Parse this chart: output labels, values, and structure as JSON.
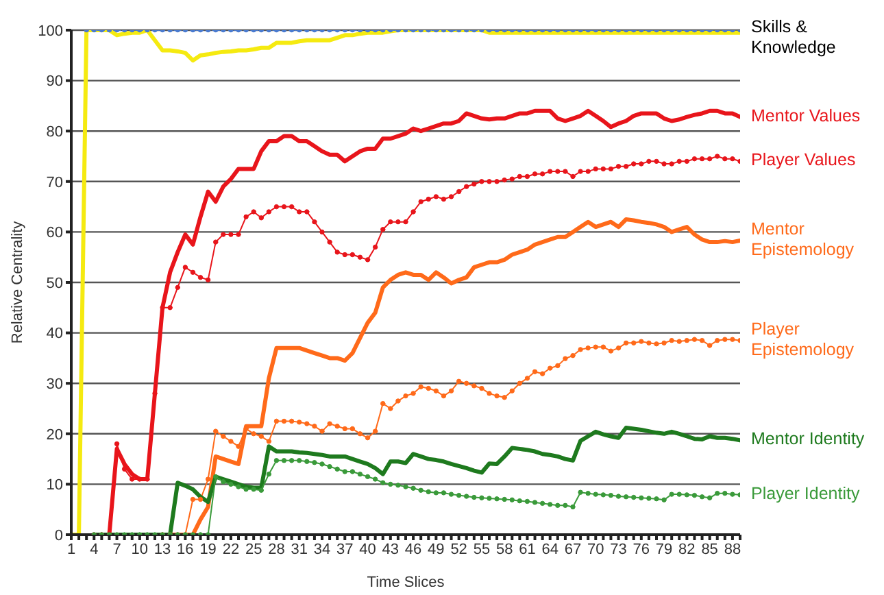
{
  "chart_data": {
    "type": "line",
    "xlabel": "Time Slices",
    "ylabel": "Relative Centrality",
    "grid": "y",
    "legend": "right",
    "annotations": [
      {
        "text": "Skills & Knowledge",
        "x": 89,
        "y": 100
      }
    ],
    "x": [
      1,
      2,
      3,
      4,
      5,
      6,
      7,
      8,
      9,
      10,
      11,
      12,
      13,
      14,
      15,
      16,
      17,
      18,
      19,
      20,
      21,
      22,
      23,
      24,
      25,
      26,
      27,
      28,
      29,
      30,
      31,
      32,
      33,
      34,
      35,
      36,
      37,
      38,
      39,
      40,
      41,
      42,
      43,
      44,
      45,
      46,
      47,
      48,
      49,
      50,
      51,
      52,
      53,
      54,
      55,
      56,
      57,
      58,
      59,
      60,
      61,
      62,
      63,
      64,
      65,
      66,
      67,
      68,
      69,
      70,
      71,
      72,
      73,
      74,
      75,
      76,
      77,
      78,
      79,
      80,
      81,
      82,
      83,
      84,
      85,
      86,
      87,
      88,
      89
    ],
    "xlim": [
      1,
      89
    ],
    "xticks": [
      1,
      {
        "value": 2,
        "label": null
      },
      {
        "value": 3,
        "label": null
      },
      4,
      {
        "value": 5,
        "label": null
      },
      {
        "value": 6,
        "label": null
      },
      7,
      {
        "value": 8,
        "label": null
      },
      {
        "value": 9,
        "label": null
      },
      10,
      {
        "value": 11,
        "label": null
      },
      {
        "value": 12,
        "label": null
      },
      13,
      {
        "value": 14,
        "label": null
      },
      {
        "value": 15,
        "label": null
      },
      16,
      {
        "value": 17,
        "label": null
      },
      {
        "value": 18,
        "label": null
      },
      19,
      {
        "value": 20,
        "label": null
      },
      {
        "value": 21,
        "label": null
      },
      22,
      {
        "value": 23,
        "label": null
      },
      {
        "value": 24,
        "label": null
      },
      25,
      {
        "value": 26,
        "label": null
      },
      {
        "value": 27,
        "label": null
      },
      28,
      {
        "value": 29,
        "label": null
      },
      {
        "value": 30,
        "label": null
      },
      31,
      {
        "value": 32,
        "label": null
      },
      {
        "value": 33,
        "label": null
      },
      34,
      {
        "value": 35,
        "label": null
      },
      {
        "value": 36,
        "label": null
      },
      37,
      {
        "value": 38,
        "label": null
      },
      {
        "value": 39,
        "label": null
      },
      40,
      {
        "value": 41,
        "label": null
      },
      {
        "value": 42,
        "label": null
      },
      43,
      {
        "value": 44,
        "label": null
      },
      {
        "value": 45,
        "label": null
      },
      46,
      {
        "value": 47,
        "label": null
      },
      {
        "value": 48,
        "label": null
      },
      49,
      {
        "value": 50,
        "label": null
      },
      {
        "value": 51,
        "label": null
      },
      52,
      {
        "value": 53,
        "label": null
      },
      {
        "value": 54,
        "label": null
      },
      55,
      {
        "value": 56,
        "label": null
      },
      {
        "value": 57,
        "label": null
      },
      58,
      {
        "value": 59,
        "label": null
      },
      {
        "value": 60,
        "label": null
      },
      61,
      {
        "value": 62,
        "label": null
      },
      {
        "value": 63,
        "label": null
      },
      64,
      {
        "value": 65,
        "label": null
      },
      {
        "value": 66,
        "label": null
      },
      67,
      {
        "value": 68,
        "label": null
      },
      {
        "value": 69,
        "label": null
      },
      70,
      {
        "value": 71,
        "label": null
      },
      {
        "value": 72,
        "label": null
      },
      73,
      {
        "value": 74,
        "label": null
      },
      {
        "value": 75,
        "label": null
      },
      76,
      {
        "value": 77,
        "label": null
      },
      {
        "value": 78,
        "label": null
      },
      79,
      {
        "value": 80,
        "label": null
      },
      {
        "value": 81,
        "label": null
      },
      82,
      {
        "value": 83,
        "label": null
      },
      {
        "value": 84,
        "label": null
      },
      85,
      {
        "value": 86,
        "label": null
      },
      {
        "value": 87,
        "label": null
      },
      88,
      {
        "value": 89,
        "label": null
      }
    ],
    "ylim": [
      0,
      100
    ],
    "yticks": [
      0,
      10,
      20,
      30,
      40,
      50,
      60,
      70,
      80,
      90,
      100
    ],
    "series": [
      {
        "color": "#4a7bd0",
        "marker": "circle",
        "line_style": "dotted",
        "values": [
          null,
          null,
          100,
          100,
          100,
          100,
          100,
          100,
          100,
          100,
          100,
          100,
          100,
          100,
          100,
          100,
          100,
          100,
          100,
          100,
          100,
          100,
          100,
          100,
          100,
          100,
          100,
          100,
          100,
          100,
          100,
          100,
          100,
          100,
          100,
          100,
          100,
          100,
          100,
          100,
          100,
          100,
          100,
          100,
          100,
          100,
          100,
          100,
          100,
          100,
          100,
          100,
          100,
          100,
          100,
          100,
          100,
          100,
          100,
          100,
          100,
          100,
          100,
          100,
          100,
          100,
          100,
          100,
          100,
          100,
          100,
          100,
          100,
          100,
          100,
          100,
          100,
          100,
          100,
          100,
          100,
          100,
          100,
          100,
          100,
          100,
          100,
          100,
          100
        ]
      },
      {
        "color": "#f5ea10",
        "marker": "none",
        "values": [
          0,
          0,
          100,
          100,
          100,
          100,
          99,
          99.3,
          99.5,
          99.5,
          100,
          98,
          96,
          96,
          95.8,
          95.5,
          94,
          95,
          95.2,
          95.5,
          95.7,
          95.8,
          96,
          96,
          96.2,
          96.5,
          96.5,
          97.5,
          97.5,
          97.5,
          97.8,
          98,
          98,
          98,
          98,
          98.5,
          99,
          99,
          99.3,
          99.5,
          99.5,
          99.5,
          99.8,
          100,
          100,
          100,
          100,
          100,
          100,
          100,
          100,
          100,
          100,
          100,
          100,
          99.5,
          99.5,
          99.5,
          99.5,
          99.5,
          99.5,
          99.5,
          99.5,
          99.5,
          99.5,
          99.5,
          99.5,
          99.5,
          99.5,
          99.5,
          99.5,
          99.5,
          99.5,
          99.5,
          99.5,
          99.5,
          99.5,
          99.5,
          99.5,
          99.5,
          99.5,
          99.5,
          99.5,
          99.5,
          99.5,
          99.5,
          99.5,
          99.5,
          99.5
        ]
      },
      {
        "name": "Mentor Values",
        "color": "#e8151b",
        "marker": "none",
        "values": [
          null,
          null,
          null,
          0,
          0,
          0,
          17,
          14,
          12,
          11,
          11,
          28,
          45,
          52,
          56,
          59.5,
          57.5,
          63,
          68,
          66,
          69,
          70.5,
          72.5,
          72.5,
          72.5,
          76,
          78,
          78,
          79,
          79,
          78,
          78,
          77,
          76,
          75.3,
          75.3,
          74,
          75,
          76,
          76.5,
          76.5,
          78.5,
          78.5,
          79,
          79.5,
          80.5,
          80,
          80.5,
          81,
          81.5,
          81.5,
          82,
          83.5,
          83,
          82.5,
          82.3,
          82.5,
          82.5,
          83,
          83.5,
          83.5,
          84,
          84,
          84,
          82.5,
          82,
          82.5,
          83,
          84,
          83,
          82,
          80.8,
          81.5,
          82,
          83,
          83.5,
          83.5,
          83.5,
          82.5,
          82,
          82.3,
          82.8,
          83.2,
          83.5,
          84,
          84,
          83.5,
          83.5,
          82.8
        ]
      },
      {
        "name": "Player Values",
        "color": "#e8151b",
        "marker": "circle",
        "values": [
          null,
          null,
          null,
          0,
          0,
          0,
          18,
          13,
          11,
          11,
          11,
          28,
          45,
          45,
          49,
          53,
          52,
          51,
          50.5,
          58,
          59.5,
          59.5,
          59.5,
          63,
          64,
          62.8,
          64,
          65,
          65,
          65,
          64,
          64,
          62,
          60,
          58,
          56,
          55.5,
          55.5,
          55,
          54.5,
          57,
          60.5,
          62,
          62,
          62,
          64,
          66,
          66.5,
          67,
          66.5,
          67,
          68,
          69,
          69.5,
          70,
          70,
          70,
          70.3,
          70.5,
          71,
          71,
          71.5,
          71.5,
          72,
          72,
          72,
          71,
          72,
          72,
          72.5,
          72.5,
          72.5,
          73,
          73,
          73.5,
          73.5,
          74,
          74,
          73.5,
          73.5,
          74,
          74,
          74.5,
          74.5,
          74.5,
          75,
          74.5,
          74.5,
          74
        ]
      },
      {
        "name": "Mentor Epistemology",
        "color": "#ff6a1a",
        "marker": "none",
        "values": [
          null,
          null,
          null,
          null,
          null,
          null,
          null,
          null,
          null,
          null,
          null,
          null,
          0,
          0,
          0,
          0,
          0,
          3,
          5.5,
          15.5,
          15,
          14.5,
          14,
          21.5,
          21.5,
          21.5,
          31,
          37,
          37,
          37,
          37,
          36.5,
          36,
          35.5,
          35,
          35,
          34.5,
          36,
          39,
          42,
          44,
          49,
          50.5,
          51.5,
          52,
          51.5,
          51.5,
          50.5,
          52,
          51,
          49.8,
          50.5,
          51,
          53,
          53.5,
          54,
          54,
          54.5,
          55.5,
          56,
          56.5,
          57.5,
          58,
          58.5,
          59,
          59,
          60,
          61,
          62,
          61,
          61.5,
          62,
          61,
          62.5,
          62.3,
          62,
          61.8,
          61.5,
          61,
          60,
          60.5,
          61,
          59.5,
          58.5,
          58,
          58,
          58.2,
          58,
          58.3
        ]
      },
      {
        "name": "Player Epistemology",
        "color": "#ff6a1a",
        "marker": "circle",
        "values": [
          null,
          null,
          null,
          null,
          null,
          null,
          null,
          null,
          null,
          null,
          null,
          null,
          0,
          0,
          0,
          0,
          7,
          7,
          11,
          20.5,
          19.5,
          18.5,
          17.5,
          21,
          20,
          19.5,
          18.5,
          22.5,
          22.5,
          22.5,
          22.3,
          22,
          21.5,
          20.5,
          22,
          21.5,
          21,
          21,
          20,
          19.2,
          20.5,
          26,
          25,
          26.5,
          27.5,
          28,
          29.3,
          29,
          28.5,
          27.5,
          28.5,
          30.4,
          30,
          29.5,
          29,
          28,
          27.5,
          27.2,
          28.5,
          30,
          31,
          32.3,
          31.9,
          33,
          33.5,
          34.9,
          35.5,
          36.7,
          37,
          37.2,
          37.2,
          36.4,
          37,
          38,
          38,
          38.3,
          38,
          37.8,
          38,
          38.5,
          38.3,
          38.5,
          38.7,
          38.5,
          37.5,
          38.5,
          38.7,
          38.7,
          38.5
        ]
      },
      {
        "name": "Mentor Identity",
        "color": "#1e7a1e",
        "marker": "none",
        "values": [
          null,
          null,
          null,
          0,
          0,
          0,
          0,
          0,
          0,
          0,
          0,
          0,
          0,
          0,
          10.3,
          9.7,
          9,
          7.5,
          6.5,
          11.5,
          11,
          10.5,
          10,
          9.5,
          9.3,
          9.3,
          17.5,
          16.5,
          16.5,
          16.5,
          16.3,
          16.2,
          16,
          15.8,
          15.5,
          15.5,
          15.5,
          15,
          14.5,
          14,
          13.2,
          12,
          14.5,
          14.5,
          14.2,
          16,
          15.5,
          15,
          14.8,
          14.5,
          14,
          13.6,
          13.2,
          12.7,
          12.3,
          14.1,
          14,
          15.5,
          17.2,
          17,
          16.8,
          16.5,
          16,
          15.8,
          15.5,
          15,
          14.7,
          18.6,
          19.5,
          20.4,
          19.9,
          19.5,
          19.2,
          21.2,
          21,
          20.8,
          20.5,
          20.2,
          20,
          20.4,
          20,
          19.5,
          19,
          18.9,
          19.5,
          19.2,
          19.2,
          19,
          18.7
        ]
      },
      {
        "name": "Player Identity",
        "color": "#3a9a3a",
        "marker": "circle",
        "values": [
          null,
          null,
          null,
          0,
          0,
          0,
          0,
          0,
          0,
          0,
          0,
          0,
          0,
          0,
          0,
          0,
          0,
          0,
          0,
          11.5,
          10.5,
          10,
          9.5,
          9,
          9,
          8.8,
          12,
          14.7,
          14.7,
          14.7,
          14.7,
          14.5,
          14.3,
          14,
          13.5,
          13,
          12.5,
          12.5,
          12,
          11.5,
          11,
          10.3,
          10,
          9.8,
          9.5,
          9.2,
          8.8,
          8.5,
          8.3,
          8.3,
          8,
          7.8,
          7.6,
          7.4,
          7.3,
          7.2,
          7.1,
          7,
          6.9,
          6.7,
          6.6,
          6.4,
          6.2,
          6,
          5.8,
          5.8,
          5.5,
          8.4,
          8.2,
          8,
          7.9,
          7.8,
          7.6,
          7.5,
          7.4,
          7.3,
          7.2,
          7.1,
          6.9,
          8,
          8,
          7.9,
          7.8,
          7.5,
          7.3,
          8.2,
          8.2,
          8,
          7.9
        ]
      }
    ]
  }
}
